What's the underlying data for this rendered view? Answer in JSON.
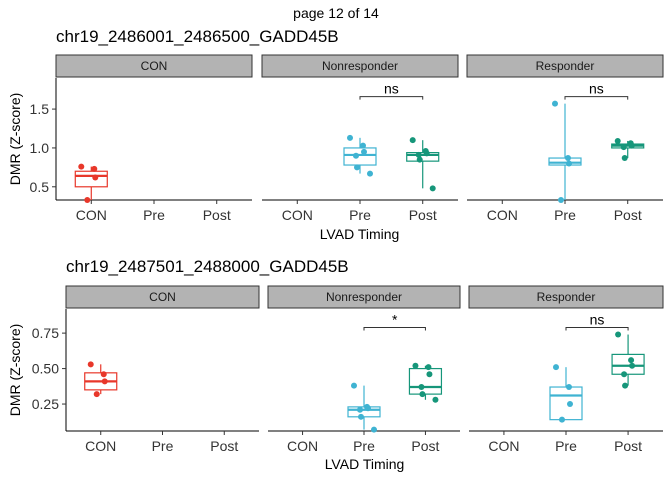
{
  "page_label": "page 12 of 14",
  "colors": {
    "CON": "#E8372A",
    "Pre": "#3FB3D2",
    "Post": "#16967A",
    "strip_fill": "#B3B3B3"
  },
  "chart_data": [
    {
      "type": "boxplot",
      "title": "chr19_2486001_2486500_GADD45B",
      "xlabel": "LVAD Timing",
      "ylabel": "DMR (Z-score)",
      "facets": [
        "CON",
        "Nonresponder",
        "Responder"
      ],
      "categories": [
        "CON",
        "Pre",
        "Post"
      ],
      "yticks": [
        0.5,
        1.0,
        1.5
      ],
      "ytick_labels": [
        "0.5",
        "1.0",
        "1.5"
      ],
      "ylim": [
        0.33,
        1.9
      ],
      "grid": false,
      "groups": [
        {
          "facet": "CON",
          "category": "CON",
          "q1": 0.5,
          "median": 0.64,
          "q3": 0.7,
          "whisker_low": 0.33,
          "whisker_high": 0.76,
          "points": [
            0.76,
            0.73,
            0.62,
            0.33
          ]
        },
        {
          "facet": "Nonresponder",
          "category": "Pre",
          "q1": 0.78,
          "median": 0.91,
          "q3": 1.0,
          "whisker_low": 0.67,
          "whisker_high": 1.13,
          "points": [
            1.13,
            1.03,
            0.95,
            0.9,
            0.75,
            0.67
          ]
        },
        {
          "facet": "Nonresponder",
          "category": "Post",
          "q1": 0.83,
          "median": 0.91,
          "q3": 0.94,
          "whisker_low": 0.48,
          "whisker_high": 1.1,
          "points": [
            1.1,
            0.96,
            0.93,
            0.91,
            0.85,
            0.48
          ]
        },
        {
          "facet": "Responder",
          "category": "Pre",
          "q1": 0.78,
          "median": 0.81,
          "q3": 0.87,
          "whisker_low": 0.33,
          "whisker_high": 1.57,
          "points": [
            1.57,
            0.87,
            0.8,
            0.33
          ]
        },
        {
          "facet": "Responder",
          "category": "Post",
          "q1": 1.0,
          "median": 1.03,
          "q3": 1.05,
          "whisker_low": 0.87,
          "whisker_high": 1.09,
          "points": [
            1.09,
            1.06,
            1.03,
            1.01,
            0.87
          ]
        }
      ],
      "annotations": [
        {
          "facet": "Nonresponder",
          "from": "Pre",
          "to": "Post",
          "label": "ns",
          "y": 1.66
        },
        {
          "facet": "Responder",
          "from": "Pre",
          "to": "Post",
          "label": "ns",
          "y": 1.66
        }
      ]
    },
    {
      "type": "boxplot",
      "title": "chr19_2487501_2488000_GADD45B",
      "xlabel": "LVAD Timing",
      "ylabel": "DMR (Z-score)",
      "facets": [
        "CON",
        "Nonresponder",
        "Responder"
      ],
      "categories": [
        "CON",
        "Pre",
        "Post"
      ],
      "yticks": [
        0.25,
        0.5,
        0.75
      ],
      "ytick_labels": [
        "0.25",
        "0.50",
        "0.75"
      ],
      "ylim": [
        0.06,
        0.92
      ],
      "grid": false,
      "groups": [
        {
          "facet": "CON",
          "category": "CON",
          "q1": 0.35,
          "median": 0.41,
          "q3": 0.47,
          "whisker_low": 0.32,
          "whisker_high": 0.53,
          "points": [
            0.53,
            0.46,
            0.41,
            0.32
          ]
        },
        {
          "facet": "Nonresponder",
          "category": "Pre",
          "q1": 0.16,
          "median": 0.21,
          "q3": 0.23,
          "whisker_low": 0.07,
          "whisker_high": 0.38,
          "points": [
            0.38,
            0.23,
            0.22,
            0.21,
            0.16,
            0.07
          ]
        },
        {
          "facet": "Nonresponder",
          "category": "Post",
          "q1": 0.32,
          "median": 0.37,
          "q3": 0.5,
          "whisker_low": 0.28,
          "whisker_high": 0.52,
          "points": [
            0.52,
            0.51,
            0.46,
            0.37,
            0.32,
            0.28
          ]
        },
        {
          "facet": "Responder",
          "category": "Pre",
          "q1": 0.14,
          "median": 0.31,
          "q3": 0.37,
          "whisker_low": 0.14,
          "whisker_high": 0.51,
          "points": [
            0.51,
            0.37,
            0.25,
            0.14
          ]
        },
        {
          "facet": "Responder",
          "category": "Post",
          "q1": 0.46,
          "median": 0.52,
          "q3": 0.6,
          "whisker_low": 0.38,
          "whisker_high": 0.74,
          "points": [
            0.74,
            0.56,
            0.52,
            0.46,
            0.38
          ]
        }
      ],
      "annotations": [
        {
          "facet": "Nonresponder",
          "from": "Pre",
          "to": "Post",
          "label": "*",
          "y": 0.79
        },
        {
          "facet": "Responder",
          "from": "Pre",
          "to": "Post",
          "label": "ns",
          "y": 0.79
        }
      ]
    }
  ]
}
